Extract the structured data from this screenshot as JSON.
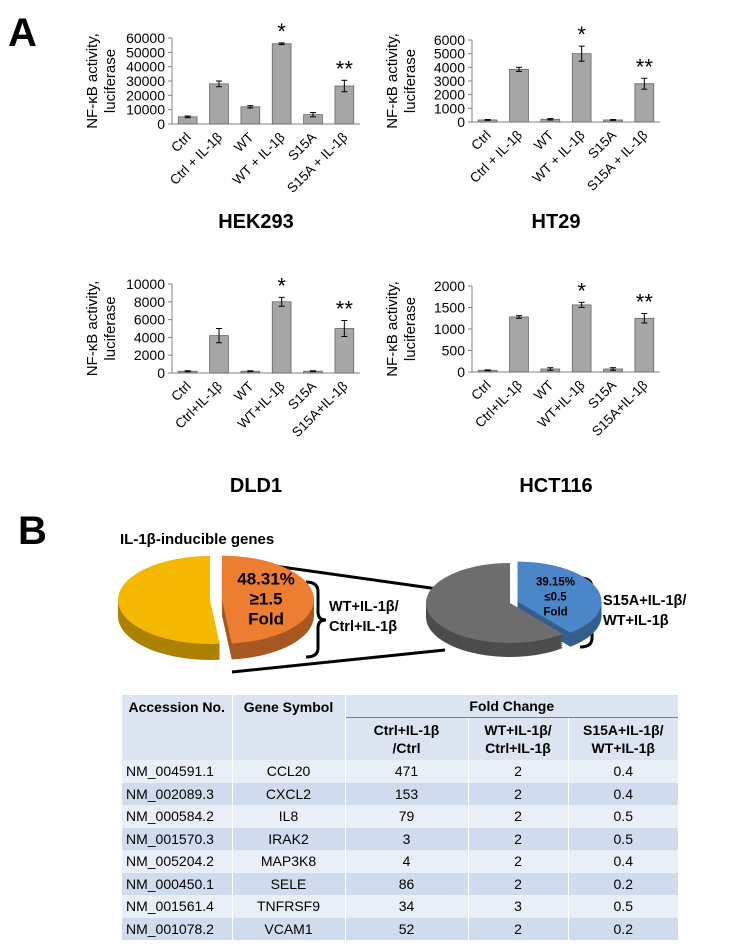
{
  "panels": [
    "A",
    "B"
  ],
  "chart_data": [
    {
      "type": "bar",
      "title": "HEK293",
      "ylabel": [
        "NF-κB activity,",
        "luciferase"
      ],
      "categories": [
        "Ctrl",
        "Ctrl + IL-1β",
        "WT",
        "WT + IL-1β",
        "S15A",
        "S15A + IL-1β"
      ],
      "values": [
        5000,
        28000,
        12000,
        56000,
        6500,
        26500
      ],
      "errors": [
        600,
        2000,
        800,
        600,
        1500,
        4000
      ],
      "annotations": [
        null,
        null,
        null,
        "*",
        null,
        "**"
      ],
      "color": "#a6a6a6",
      "ylim": [
        0,
        60000
      ],
      "yticks": [
        0,
        10000,
        20000,
        30000,
        40000,
        50000,
        60000
      ]
    },
    {
      "type": "bar",
      "title": "HT29",
      "ylabel": [
        "NF-κB activity,",
        "luciferase"
      ],
      "categories": [
        "Ctrl",
        "Ctrl + IL-1β",
        "WT",
        "WT + IL-1β",
        "S15A",
        "S15A + IL-1β"
      ],
      "values": [
        150,
        3850,
        200,
        5000,
        150,
        2800
      ],
      "errors": [
        30,
        150,
        50,
        550,
        30,
        400
      ],
      "annotations": [
        null,
        null,
        null,
        "*",
        null,
        "**"
      ],
      "color": "#a6a6a6",
      "ylim": [
        0,
        6000
      ],
      "yticks": [
        0,
        1000,
        2000,
        3000,
        4000,
        5000,
        6000
      ]
    },
    {
      "type": "bar",
      "title": "DLD1",
      "ylabel": [
        "NF-κB activity,",
        "luciferase"
      ],
      "categories": [
        "Ctrl",
        "Ctrl+IL-1β",
        "WT",
        "WT+IL-1β",
        "S15A",
        "S15A+IL-1β"
      ],
      "values": [
        200,
        4200,
        200,
        8000,
        200,
        5000
      ],
      "errors": [
        50,
        800,
        50,
        500,
        50,
        900
      ],
      "annotations": [
        null,
        null,
        null,
        "*",
        null,
        "**"
      ],
      "color": "#a6a6a6",
      "ylim": [
        0,
        10000
      ],
      "yticks": [
        0,
        2000,
        4000,
        6000,
        8000,
        10000
      ]
    },
    {
      "type": "bar",
      "title": "HCT116",
      "ylabel": [
        "NF-κB activity,",
        "luciferase"
      ],
      "categories": [
        "Ctrl",
        "Ctrl+IL-1β",
        "WT",
        "WT+IL-1β",
        "S15A",
        "S15A+IL-1β"
      ],
      "values": [
        40,
        1280,
        70,
        1560,
        70,
        1250
      ],
      "errors": [
        10,
        30,
        30,
        60,
        30,
        110
      ],
      "annotations": [
        null,
        null,
        null,
        "*",
        null,
        "**"
      ],
      "color": "#a6a6a6",
      "ylim": [
        0,
        2000
      ],
      "yticks": [
        0,
        500,
        1000,
        1500,
        2000
      ]
    },
    {
      "type": "pie",
      "title": "IL-1β-inducible genes",
      "values": [
        48.31,
        51.69
      ],
      "value_labels": [
        "48.31%",
        null
      ],
      "notes": [
        [
          "≥1.5",
          "Fold"
        ],
        null
      ],
      "colors": [
        "#ed7d31",
        "#f5b800"
      ],
      "comparison": [
        "WT+IL-1β/",
        "Ctrl+IL-1β"
      ]
    },
    {
      "type": "pie",
      "values": [
        39.15,
        60.85
      ],
      "value_labels": [
        "39.15%",
        null
      ],
      "notes": [
        [
          "≤0.5",
          "Fold"
        ],
        null
      ],
      "colors": [
        "#4a86c8",
        "#6d6d6d"
      ],
      "comparison": [
        "S15A+IL-1β/",
        "WT+IL-1β"
      ]
    }
  ],
  "table": {
    "headers": [
      "Accession No.",
      "Gene Symbol",
      "Fold Change"
    ],
    "subheaders": [
      [
        "Ctrl+IL-1β",
        "/Ctrl"
      ],
      [
        "WT+IL-1β/",
        "Ctrl+IL-1β"
      ],
      [
        "S15A+IL-1β/",
        "WT+IL-1β"
      ]
    ],
    "rows": [
      [
        "NM_004591.1",
        "CCL20",
        471,
        2,
        0.4
      ],
      [
        "NM_002089.3",
        "CXCL2",
        153,
        2,
        0.4
      ],
      [
        "NM_000584.2",
        "IL8",
        79,
        2,
        0.5
      ],
      [
        "NM_001570.3",
        "IRAK2",
        3,
        2,
        0.5
      ],
      [
        "NM_005204.2",
        "MAP3K8",
        4,
        2,
        0.4
      ],
      [
        "NM_000450.1",
        "SELE",
        86,
        2,
        0.2
      ],
      [
        "NM_001561.4",
        "TNFRSF9",
        34,
        3,
        0.5
      ],
      [
        "NM_001078.2",
        "VCAM1",
        52,
        2,
        0.2
      ]
    ]
  }
}
